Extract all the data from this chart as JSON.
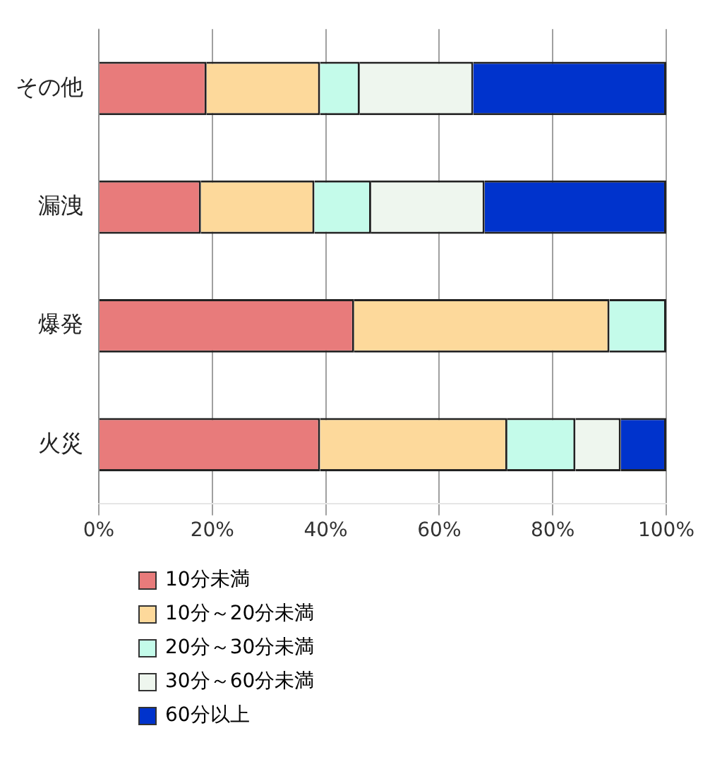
{
  "chart_data": {
    "type": "bar",
    "orientation": "horizontal",
    "stacked": true,
    "categories": [
      "その他",
      "漏洩",
      "爆発",
      "火災"
    ],
    "series": [
      {
        "name": "10分未満",
        "color": "#e87b7b",
        "values": [
          19,
          18,
          45,
          39
        ]
      },
      {
        "name": "10分～20分未満",
        "color": "#fdd99b",
        "values": [
          20,
          20,
          45,
          33
        ]
      },
      {
        "name": "20分～30分未満",
        "color": "#c4fbea",
        "values": [
          7,
          10,
          10,
          12
        ]
      },
      {
        "name": "30分～60分未満",
        "color": "#eef6ee",
        "values": [
          20,
          20,
          0,
          8
        ]
      },
      {
        "name": "60分以上",
        "color": "#0033cc",
        "values": [
          34,
          32,
          0,
          8
        ]
      }
    ],
    "xlim": [
      0,
      100
    ],
    "xticks": [
      {
        "value": 0,
        "label": "0%"
      },
      {
        "value": 20,
        "label": "20%"
      },
      {
        "value": 40,
        "label": "40%"
      },
      {
        "value": 60,
        "label": "60%"
      },
      {
        "value": 80,
        "label": "80%"
      },
      {
        "value": 100,
        "label": "100%"
      }
    ],
    "grid": "x",
    "legend": "bottom left"
  }
}
